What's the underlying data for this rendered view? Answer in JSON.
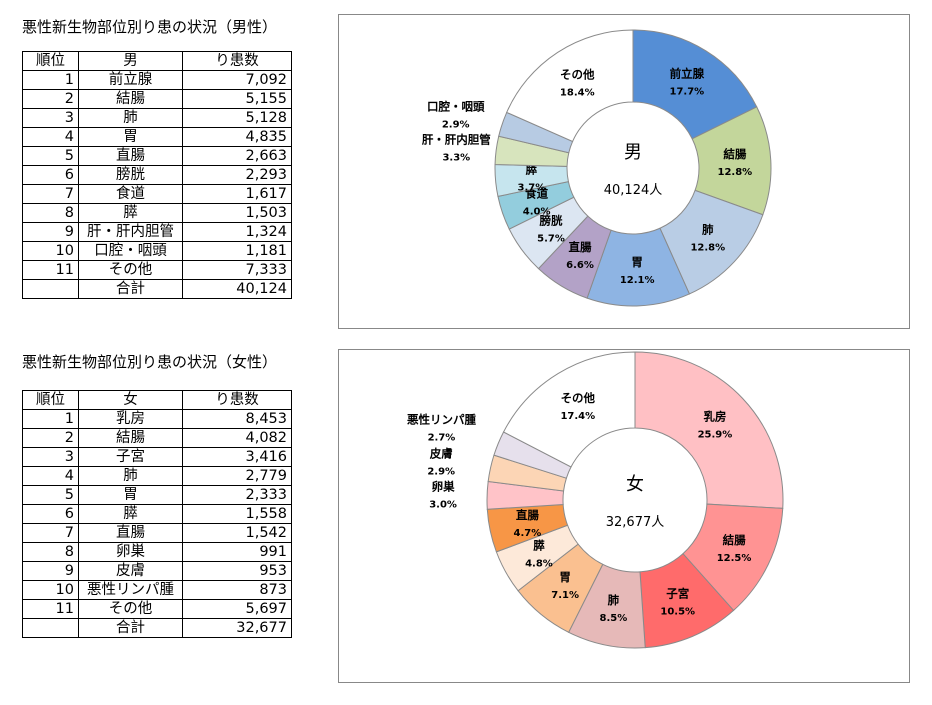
{
  "sections": [
    {
      "title": "悪性新生物部位別り患の状況（男性）",
      "headers": [
        "順位",
        "男",
        "り患数"
      ],
      "rows": [
        {
          "rank": "1",
          "site": "前立腺",
          "count": "7,092"
        },
        {
          "rank": "2",
          "site": "結腸",
          "count": "5,155"
        },
        {
          "rank": "3",
          "site": "肺",
          "count": "5,128"
        },
        {
          "rank": "4",
          "site": "胃",
          "count": "4,835"
        },
        {
          "rank": "5",
          "site": "直腸",
          "count": "2,663"
        },
        {
          "rank": "6",
          "site": "膀胱",
          "count": "2,293"
        },
        {
          "rank": "7",
          "site": "食道",
          "count": "1,617"
        },
        {
          "rank": "8",
          "site": "膵",
          "count": "1,503"
        },
        {
          "rank": "9",
          "site": "肝・肝内胆管",
          "count": "1,324"
        },
        {
          "rank": "10",
          "site": "口腔・咽頭",
          "count": "1,181"
        },
        {
          "rank": "11",
          "site": "その他",
          "count": "7,333"
        }
      ],
      "total": {
        "rank": "",
        "site": "合計",
        "count": "40,124"
      }
    },
    {
      "title": "悪性新生物部位別り患の状況（女性）",
      "headers": [
        "順位",
        "女",
        "り患数"
      ],
      "rows": [
        {
          "rank": "1",
          "site": "乳房",
          "count": "8,453"
        },
        {
          "rank": "2",
          "site": "結腸",
          "count": "4,082"
        },
        {
          "rank": "3",
          "site": "子宮",
          "count": "3,416"
        },
        {
          "rank": "4",
          "site": "肺",
          "count": "2,779"
        },
        {
          "rank": "5",
          "site": "胃",
          "count": "2,333"
        },
        {
          "rank": "6",
          "site": "膵",
          "count": "1,558"
        },
        {
          "rank": "7",
          "site": "直腸",
          "count": "1,542"
        },
        {
          "rank": "8",
          "site": "卵巣",
          "count": "991"
        },
        {
          "rank": "9",
          "site": "皮膚",
          "count": "953"
        },
        {
          "rank": "10",
          "site": "悪性リンパ腫",
          "count": "873"
        },
        {
          "rank": "11",
          "site": "その他",
          "count": "5,697"
        }
      ],
      "total": {
        "rank": "",
        "site": "合計",
        "count": "32,677"
      }
    }
  ],
  "chart_data": [
    {
      "type": "pie",
      "title": "",
      "center_label": "男",
      "center_sub": "40,124人",
      "slices": [
        {
          "label": "前立腺",
          "value": 17.7,
          "text": "17.7%",
          "color": "#558ed5"
        },
        {
          "label": "結腸",
          "value": 12.8,
          "text": "12.8%",
          "color": "#c3d69b"
        },
        {
          "label": "肺",
          "value": 12.8,
          "text": "12.8%",
          "color": "#b9cde5"
        },
        {
          "label": "胃",
          "value": 12.1,
          "text": "12.1%",
          "color": "#8eb4e3"
        },
        {
          "label": "直腸",
          "value": 6.6,
          "text": "6.6%",
          "color": "#b3a2c7"
        },
        {
          "label": "膀胱",
          "value": 5.7,
          "text": "5.7%",
          "color": "#dce6f2"
        },
        {
          "label": "食道",
          "value": 4.0,
          "text": "4.0%",
          "color": "#93cddd"
        },
        {
          "label": "膵",
          "value": 3.7,
          "text": "3.7%",
          "color": "#c6e5ee"
        },
        {
          "label": "肝・肝内胆管",
          "value": 3.3,
          "text": "3.3%",
          "color": "#d7e4bd"
        },
        {
          "label": "口腔・咽頭",
          "value": 2.9,
          "text": "2.9%",
          "color": "#b7cbe3"
        },
        {
          "label": "その他",
          "value": 18.4,
          "text": "18.4%",
          "color": "#ffffff"
        }
      ]
    },
    {
      "type": "pie",
      "title": "",
      "center_label": "女",
      "center_sub": "32,677人",
      "slices": [
        {
          "label": "乳房",
          "value": 25.9,
          "text": "25.9%",
          "color": "#ffc0c4"
        },
        {
          "label": "結腸",
          "value": 12.5,
          "text": "12.5%",
          "color": "#ff9393"
        },
        {
          "label": "子宮",
          "value": 10.5,
          "text": "10.5%",
          "color": "#ff6b6b"
        },
        {
          "label": "肺",
          "value": 8.5,
          "text": "8.5%",
          "color": "#e6b9b8"
        },
        {
          "label": "胃",
          "value": 7.1,
          "text": "7.1%",
          "color": "#fac090"
        },
        {
          "label": "膵",
          "value": 4.8,
          "text": "4.8%",
          "color": "#fde9d9"
        },
        {
          "label": "直腸",
          "value": 4.7,
          "text": "4.7%",
          "color": "#f79646"
        },
        {
          "label": "卵巣",
          "value": 3.0,
          "text": "3.0%",
          "color": "#ffc3c8"
        },
        {
          "label": "皮膚",
          "value": 2.9,
          "text": "2.9%",
          "color": "#fcd5b5"
        },
        {
          "label": "悪性リンパ腫",
          "value": 2.7,
          "text": "2.7%",
          "color": "#e6e0ec"
        },
        {
          "label": "その他",
          "value": 17.4,
          "text": "17.4%",
          "color": "#ffffff"
        }
      ]
    }
  ]
}
